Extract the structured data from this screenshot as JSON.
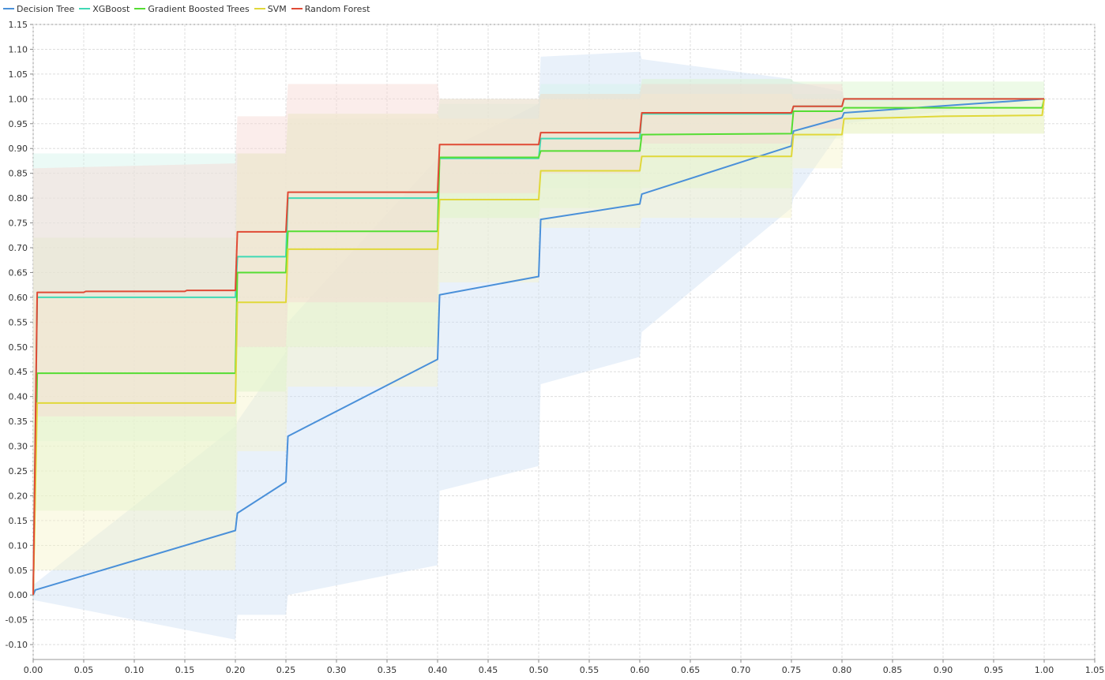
{
  "chart_data": {
    "type": "line",
    "title": "",
    "xlabel": "",
    "ylabel": "",
    "xlim": [
      0.0,
      1.05
    ],
    "ylim": [
      -0.13,
      1.15
    ],
    "x_ticks": [
      "0.00",
      "0.05",
      "0.10",
      "0.15",
      "0.20",
      "0.25",
      "0.30",
      "0.35",
      "0.40",
      "0.45",
      "0.50",
      "0.55",
      "0.60",
      "0.65",
      "0.70",
      "0.75",
      "0.80",
      "0.85",
      "0.90",
      "0.95",
      "1.00",
      "1.05"
    ],
    "y_ticks": [
      "1.15",
      "1.10",
      "1.05",
      "1.00",
      "0.95",
      "0.90",
      "0.85",
      "0.80",
      "0.75",
      "0.70",
      "0.65",
      "0.60",
      "0.55",
      "0.50",
      "0.45",
      "0.40",
      "0.35",
      "0.30",
      "0.25",
      "0.20",
      "0.15",
      "0.10",
      "0.05",
      "0.00",
      "-0.05",
      "-0.10"
    ],
    "grid": true,
    "legend_position": "top-left",
    "series": [
      {
        "name": "Decision Tree",
        "color": "#4a90d9",
        "band_color": "#cfe0f5",
        "points": [
          [
            0,
            0
          ],
          [
            0.002,
            0.01
          ],
          [
            0.2,
            0.13
          ],
          [
            0.202,
            0.165
          ],
          [
            0.25,
            0.228
          ],
          [
            0.252,
            0.32
          ],
          [
            0.4,
            0.475
          ],
          [
            0.402,
            0.605
          ],
          [
            0.5,
            0.642
          ],
          [
            0.502,
            0.757
          ],
          [
            0.6,
            0.788
          ],
          [
            0.602,
            0.808
          ],
          [
            0.75,
            0.905
          ],
          [
            0.752,
            0.935
          ],
          [
            0.8,
            0.962
          ],
          [
            0.802,
            0.972
          ],
          [
            1.0,
            1.0
          ]
        ],
        "band": [
          [
            0,
            0.02,
            -0.01
          ],
          [
            0.2,
            0.34,
            -0.09
          ],
          [
            0.202,
            0.35,
            -0.04
          ],
          [
            0.25,
            0.49,
            -0.04
          ],
          [
            0.252,
            0.55,
            0.0
          ],
          [
            0.4,
            0.88,
            0.06
          ],
          [
            0.402,
            0.89,
            0.21
          ],
          [
            0.5,
            0.99,
            0.26
          ],
          [
            0.502,
            1.085,
            0.425
          ],
          [
            0.6,
            1.095,
            0.48
          ],
          [
            0.602,
            1.08,
            0.53
          ],
          [
            0.75,
            1.04,
            0.78
          ],
          [
            0.752,
            1.035,
            0.8
          ],
          [
            0.8,
            1.015,
            0.94
          ],
          [
            0.802,
            1.0,
            0.95
          ],
          [
            1.0,
            1.0,
            1.0
          ]
        ]
      },
      {
        "name": "XGBoost",
        "color": "#40d9b5",
        "band_color": "#d2f5ec",
        "points": [
          [
            0,
            0
          ],
          [
            0.004,
            0.6
          ],
          [
            0.2,
            0.6
          ],
          [
            0.202,
            0.682
          ],
          [
            0.25,
            0.682
          ],
          [
            0.252,
            0.8
          ],
          [
            0.4,
            0.8
          ],
          [
            0.402,
            0.88
          ],
          [
            0.5,
            0.88
          ],
          [
            0.502,
            0.92
          ],
          [
            0.6,
            0.92
          ],
          [
            0.602,
            0.97
          ],
          [
            0.75,
            0.97
          ],
          [
            0.752,
            0.985
          ],
          [
            0.8,
            0.985
          ],
          [
            0.802,
            1.0
          ],
          [
            1.0,
            1.0
          ]
        ],
        "band": [
          [
            0,
            0.89,
            0.31
          ],
          [
            0.2,
            0.89,
            0.31
          ],
          [
            0.202,
            0.89,
            0.41
          ],
          [
            0.25,
            0.89,
            0.41
          ],
          [
            0.252,
            0.96,
            0.6
          ],
          [
            0.4,
            0.96,
            0.6
          ],
          [
            0.402,
            0.99,
            0.76
          ],
          [
            0.5,
            0.99,
            0.76
          ],
          [
            0.502,
            1.03,
            0.82
          ],
          [
            0.6,
            1.03,
            0.82
          ],
          [
            0.602,
            1.03,
            0.91
          ],
          [
            0.75,
            1.03,
            0.91
          ],
          [
            0.752,
            1.01,
            0.96
          ],
          [
            0.8,
            1.01,
            0.96
          ],
          [
            0.802,
            1.0,
            1.0
          ],
          [
            1.0,
            1.0,
            1.0
          ]
        ]
      },
      {
        "name": "Gradient Boosted Trees",
        "color": "#55dd33",
        "band_color": "#d7f5c9",
        "points": [
          [
            0,
            0
          ],
          [
            0.004,
            0.447
          ],
          [
            0.2,
            0.447
          ],
          [
            0.202,
            0.65
          ],
          [
            0.25,
            0.65
          ],
          [
            0.252,
            0.733
          ],
          [
            0.4,
            0.733
          ],
          [
            0.402,
            0.882
          ],
          [
            0.5,
            0.882
          ],
          [
            0.502,
            0.895
          ],
          [
            0.6,
            0.895
          ],
          [
            0.602,
            0.928
          ],
          [
            0.75,
            0.93
          ],
          [
            0.752,
            0.975
          ],
          [
            0.8,
            0.975
          ],
          [
            0.802,
            0.982
          ],
          [
            0.998,
            0.982
          ],
          [
            1.0,
            1.0
          ]
        ],
        "band": [
          [
            0,
            0.72,
            0.17
          ],
          [
            0.2,
            0.72,
            0.17
          ],
          [
            0.202,
            0.89,
            0.41
          ],
          [
            0.25,
            0.89,
            0.41
          ],
          [
            0.252,
            0.97,
            0.5
          ],
          [
            0.4,
            0.97,
            0.5
          ],
          [
            0.402,
            1.0,
            0.76
          ],
          [
            0.5,
            1.0,
            0.76
          ],
          [
            0.502,
            1.01,
            0.78
          ],
          [
            0.6,
            1.01,
            0.78
          ],
          [
            0.602,
            1.04,
            0.82
          ],
          [
            0.75,
            1.04,
            0.82
          ],
          [
            0.752,
            1.035,
            0.92
          ],
          [
            0.8,
            1.035,
            0.92
          ],
          [
            0.802,
            1.035,
            0.93
          ],
          [
            1.0,
            1.035,
            0.93
          ]
        ]
      },
      {
        "name": "SVM",
        "color": "#e0d83a",
        "band_color": "#f6f3c9",
        "points": [
          [
            0,
            0
          ],
          [
            0.004,
            0.387
          ],
          [
            0.2,
            0.387
          ],
          [
            0.202,
            0.59
          ],
          [
            0.25,
            0.59
          ],
          [
            0.252,
            0.697
          ],
          [
            0.4,
            0.697
          ],
          [
            0.402,
            0.797
          ],
          [
            0.5,
            0.797
          ],
          [
            0.502,
            0.855
          ],
          [
            0.6,
            0.855
          ],
          [
            0.602,
            0.884
          ],
          [
            0.75,
            0.884
          ],
          [
            0.752,
            0.928
          ],
          [
            0.8,
            0.928
          ],
          [
            0.802,
            0.96
          ],
          [
            0.85,
            0.962
          ],
          [
            0.9,
            0.965
          ],
          [
            0.998,
            0.967
          ],
          [
            1.0,
            1.0
          ]
        ],
        "band": [
          [
            0,
            0.6,
            0.05
          ],
          [
            0.2,
            0.6,
            0.05
          ],
          [
            0.202,
            0.89,
            0.29
          ],
          [
            0.25,
            0.89,
            0.29
          ],
          [
            0.252,
            0.97,
            0.42
          ],
          [
            0.4,
            0.97,
            0.42
          ],
          [
            0.402,
            0.96,
            0.63
          ],
          [
            0.5,
            0.96,
            0.63
          ],
          [
            0.502,
            1.0,
            0.74
          ],
          [
            0.6,
            1.0,
            0.74
          ],
          [
            0.602,
            1.01,
            0.76
          ],
          [
            0.75,
            1.01,
            0.76
          ],
          [
            0.752,
            1.0,
            0.86
          ],
          [
            0.8,
            1.0,
            0.86
          ],
          [
            0.802,
            0.995,
            0.93
          ],
          [
            1.0,
            0.995,
            0.93
          ]
        ]
      },
      {
        "name": "Random Forest",
        "color": "#e04a35",
        "band_color": "#f7d6d2",
        "points": [
          [
            0,
            0
          ],
          [
            0.004,
            0.61
          ],
          [
            0.05,
            0.61
          ],
          [
            0.052,
            0.612
          ],
          [
            0.15,
            0.612
          ],
          [
            0.152,
            0.614
          ],
          [
            0.2,
            0.614
          ],
          [
            0.202,
            0.732
          ],
          [
            0.25,
            0.732
          ],
          [
            0.252,
            0.812
          ],
          [
            0.4,
            0.812
          ],
          [
            0.402,
            0.908
          ],
          [
            0.5,
            0.908
          ],
          [
            0.502,
            0.932
          ],
          [
            0.6,
            0.932
          ],
          [
            0.602,
            0.972
          ],
          [
            0.75,
            0.972
          ],
          [
            0.752,
            0.985
          ],
          [
            0.8,
            0.985
          ],
          [
            0.802,
            1.0
          ],
          [
            1.0,
            1.0
          ]
        ],
        "band": [
          [
            0,
            0.86,
            0.36
          ],
          [
            0.2,
            0.87,
            0.36
          ],
          [
            0.202,
            0.965,
            0.5
          ],
          [
            0.25,
            0.965,
            0.5
          ],
          [
            0.252,
            1.03,
            0.59
          ],
          [
            0.4,
            1.03,
            0.59
          ],
          [
            0.402,
            1.0,
            0.81
          ],
          [
            0.5,
            1.0,
            0.81
          ],
          [
            0.502,
            1.01,
            0.85
          ],
          [
            0.6,
            1.01,
            0.85
          ],
          [
            0.602,
            1.03,
            0.91
          ],
          [
            0.75,
            1.03,
            0.91
          ],
          [
            0.752,
            1.03,
            0.94
          ],
          [
            0.8,
            1.03,
            0.94
          ],
          [
            0.802,
            1.0,
            1.0
          ],
          [
            1.0,
            1.0,
            1.0
          ]
        ]
      }
    ]
  }
}
